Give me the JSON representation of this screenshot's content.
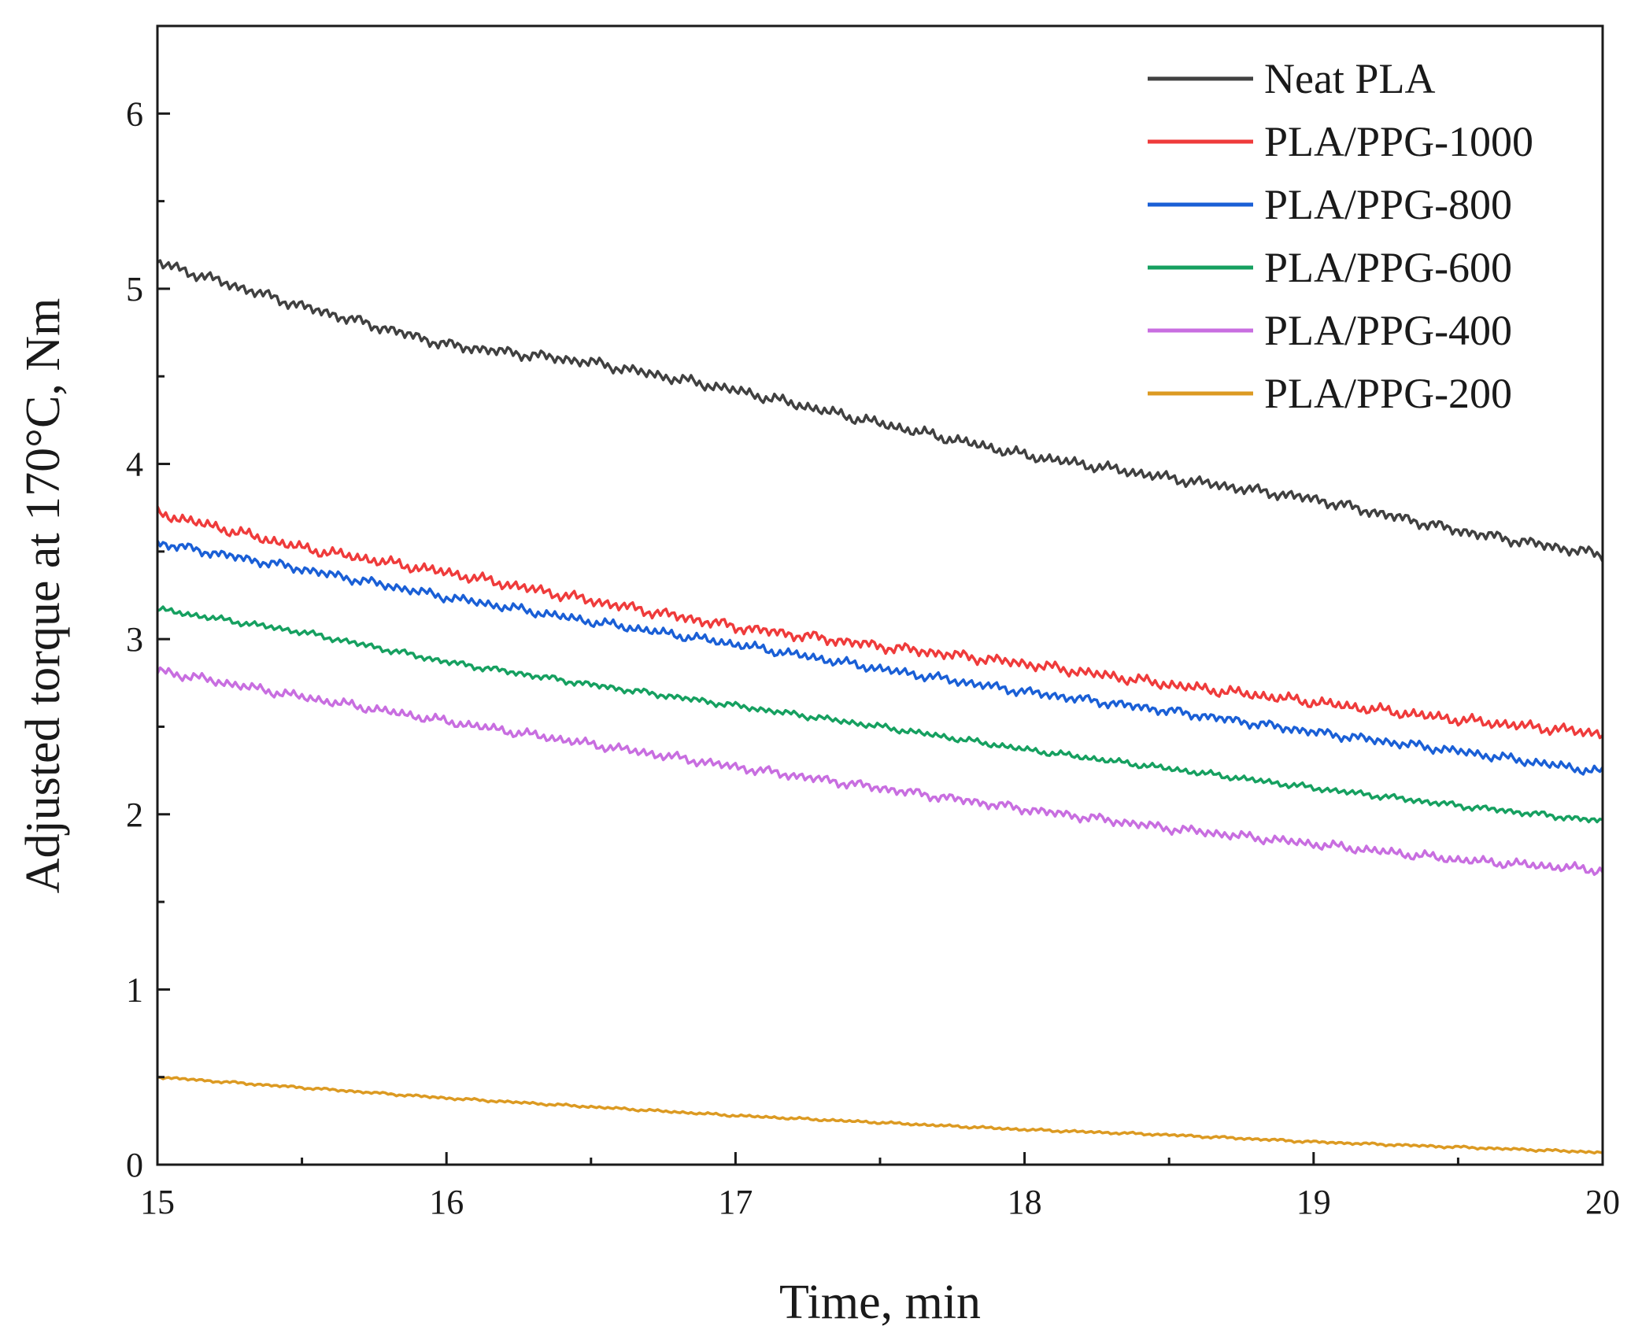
{
  "chart_data": {
    "type": "line",
    "title": "",
    "xlabel": "Time, min",
    "ylabel": "Adjusted torque at 170°C, Nm",
    "xlim": [
      15,
      20
    ],
    "ylim": [
      0,
      6.5
    ],
    "xticks": [
      "15",
      "16",
      "17",
      "18",
      "19",
      "20"
    ],
    "yticks": [
      "0",
      "1",
      "2",
      "3",
      "4",
      "5",
      "6"
    ],
    "grid": false,
    "legend_position": "top-right",
    "x": [
      15.0,
      15.5,
      16.0,
      16.5,
      17.0,
      17.5,
      18.0,
      18.5,
      19.0,
      19.5,
      20.0
    ],
    "series": [
      {
        "name": "Neat PLA",
        "color": "#404040",
        "noise": 0.035,
        "values": [
          5.15,
          4.9,
          4.68,
          4.58,
          4.42,
          4.23,
          4.05,
          3.92,
          3.8,
          3.62,
          3.48
        ]
      },
      {
        "name": "PLA/PPG-1000",
        "color": "#ef3b3b",
        "noise": 0.035,
        "values": [
          3.72,
          3.52,
          3.38,
          3.22,
          3.07,
          2.96,
          2.86,
          2.74,
          2.64,
          2.54,
          2.46
        ]
      },
      {
        "name": "PLA/PPG-800",
        "color": "#1a5fd6",
        "noise": 0.03,
        "values": [
          3.55,
          3.4,
          3.24,
          3.1,
          2.97,
          2.83,
          2.7,
          2.59,
          2.47,
          2.36,
          2.24
        ]
      },
      {
        "name": "PLA/PPG-600",
        "color": "#16a060",
        "noise": 0.02,
        "values": [
          3.17,
          3.04,
          2.87,
          2.74,
          2.62,
          2.5,
          2.37,
          2.26,
          2.15,
          2.05,
          1.96
        ]
      },
      {
        "name": "PLA/PPG-400",
        "color": "#c86ee0",
        "noise": 0.03,
        "values": [
          2.82,
          2.67,
          2.53,
          2.4,
          2.27,
          2.15,
          2.03,
          1.92,
          1.83,
          1.74,
          1.68
        ]
      },
      {
        "name": "PLA/PPG-200",
        "color": "#dc9a22",
        "noise": 0.008,
        "values": [
          0.5,
          0.44,
          0.38,
          0.33,
          0.28,
          0.24,
          0.2,
          0.17,
          0.13,
          0.1,
          0.07
        ]
      }
    ]
  }
}
